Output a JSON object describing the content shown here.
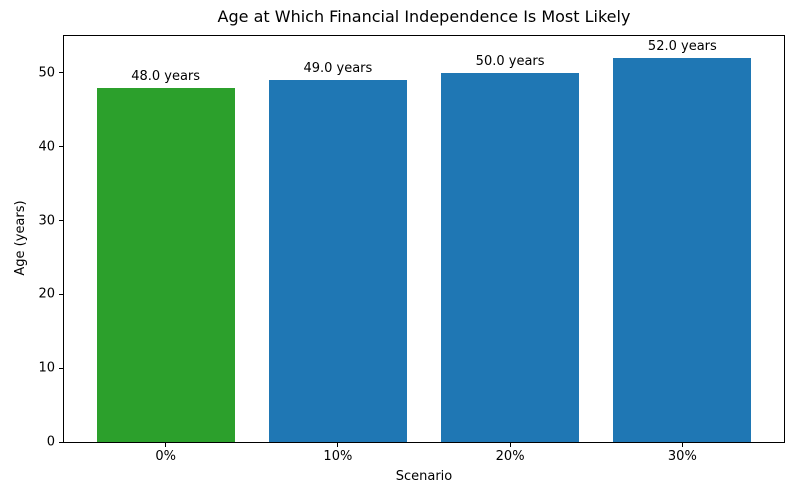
{
  "colors": {
    "bar_default": "#1f77b4",
    "bar_highlight": "#2ca02c",
    "axis": "#000000",
    "text": "#000000",
    "background": "#ffffff"
  },
  "chart_data": {
    "type": "bar",
    "title": "Age at Which Financial Independence Is Most Likely",
    "xlabel": "Scenario",
    "ylabel": "Age (years)",
    "categories": [
      "0%",
      "10%",
      "20%",
      "30%"
    ],
    "values": [
      48.0,
      49.0,
      50.0,
      52.0
    ],
    "bar_labels": [
      "48.0 years",
      "49.0 years",
      "50.0 years",
      "52.0 years"
    ],
    "bar_colors": [
      "#2ca02c",
      "#1f77b4",
      "#1f77b4",
      "#1f77b4"
    ],
    "yticks": [
      0,
      10,
      20,
      30,
      40,
      50
    ],
    "ylim": [
      0,
      55
    ],
    "bar_width_fraction": 0.8,
    "grid": false,
    "legend": "none"
  }
}
